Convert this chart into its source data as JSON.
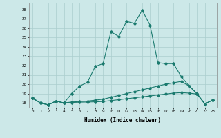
{
  "xlabel": "Humidex (Indice chaleur)",
  "background_color": "#cce8e8",
  "grid_color": "#aacece",
  "line_color": "#1a7a6e",
  "xlim": [
    -0.5,
    23.5
  ],
  "ylim": [
    17.5,
    28.7
  ],
  "yticks": [
    18,
    19,
    20,
    21,
    22,
    23,
    24,
    25,
    26,
    27,
    28
  ],
  "xticks": [
    0,
    1,
    2,
    3,
    4,
    5,
    6,
    7,
    8,
    9,
    10,
    11,
    12,
    13,
    14,
    15,
    16,
    17,
    18,
    19,
    20,
    21,
    22,
    23
  ],
  "line1_x": [
    0,
    1,
    2,
    3,
    4,
    5,
    6,
    7,
    8,
    9,
    10,
    11,
    12,
    13,
    14,
    15,
    16,
    17,
    18,
    19,
    20,
    21,
    22,
    23
  ],
  "line1_y": [
    18.5,
    18.0,
    17.8,
    18.2,
    18.0,
    19.0,
    19.8,
    20.2,
    21.9,
    22.2,
    25.6,
    25.1,
    26.7,
    26.5,
    27.9,
    26.3,
    22.3,
    22.2,
    22.2,
    20.8,
    19.8,
    19.0,
    17.9,
    18.3
  ],
  "line2_x": [
    0,
    1,
    2,
    3,
    4,
    5,
    6,
    7,
    8,
    9,
    10,
    11,
    12,
    13,
    14,
    15,
    16,
    17,
    18,
    19,
    20,
    21,
    22,
    23
  ],
  "line2_y": [
    18.5,
    18.0,
    17.8,
    18.2,
    18.0,
    18.1,
    18.15,
    18.2,
    18.3,
    18.4,
    18.6,
    18.8,
    19.0,
    19.2,
    19.4,
    19.6,
    19.8,
    20.0,
    20.15,
    20.3,
    19.8,
    19.0,
    17.9,
    18.3
  ],
  "line3_x": [
    0,
    1,
    2,
    3,
    4,
    5,
    6,
    7,
    8,
    9,
    10,
    11,
    12,
    13,
    14,
    15,
    16,
    17,
    18,
    19,
    20,
    21,
    22,
    23
  ],
  "line3_y": [
    18.5,
    18.0,
    17.8,
    18.2,
    18.0,
    18.05,
    18.08,
    18.1,
    18.12,
    18.15,
    18.25,
    18.35,
    18.45,
    18.55,
    18.65,
    18.75,
    18.85,
    18.95,
    19.05,
    19.1,
    19.05,
    18.95,
    17.9,
    18.3
  ]
}
